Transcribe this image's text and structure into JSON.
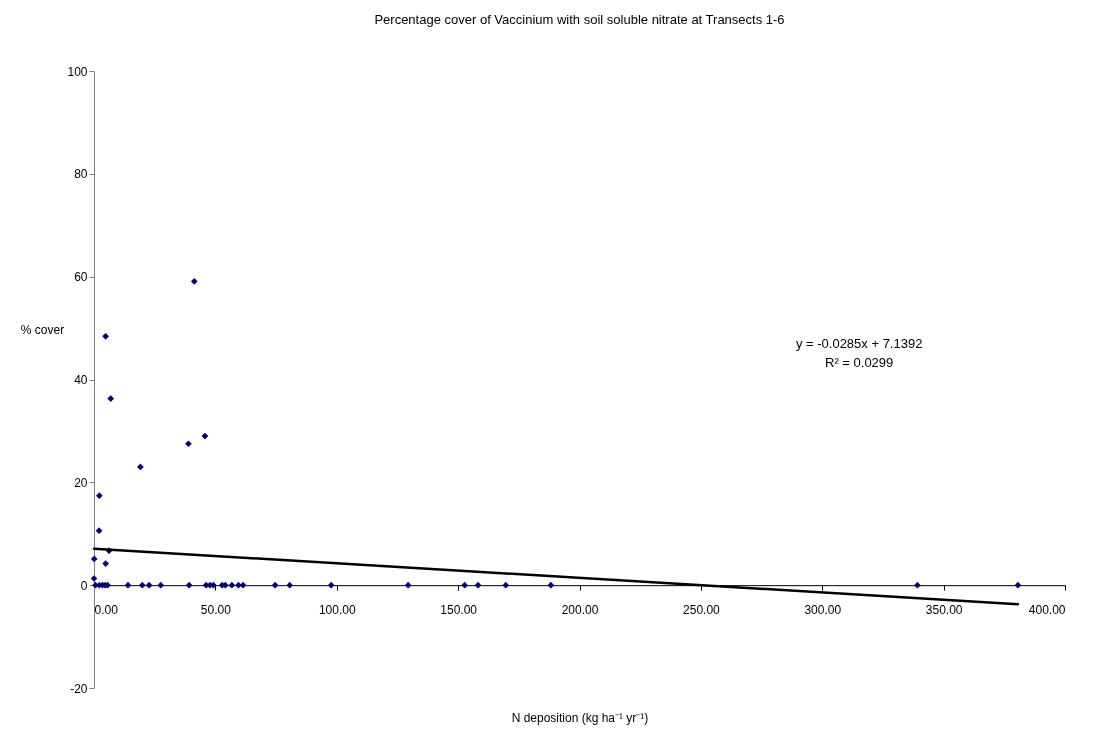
{
  "chart_data": {
    "type": "scatter",
    "title": "Percentage cover of Vaccinium with soil soluble nitrate at Transects 1-6",
    "xlabel": "N deposition (kg ha⁻¹ yr⁻¹)",
    "ylabel": "% cover",
    "xlim": [
      0,
      400
    ],
    "xticks": [
      {
        "value": 0,
        "label": "0.00"
      },
      {
        "value": 50,
        "label": "50.00"
      },
      {
        "value": 100,
        "label": "100.00"
      },
      {
        "value": 150,
        "label": "150.00"
      },
      {
        "value": 200,
        "label": "200.00"
      },
      {
        "value": 250,
        "label": "250.00"
      },
      {
        "value": 300,
        "label": "300.00"
      },
      {
        "value": 350,
        "label": "350.00"
      },
      {
        "value": 400,
        "label": "400.00"
      }
    ],
    "ylim": [
      -20,
      100
    ],
    "yticks": [
      -20,
      0,
      20,
      40,
      60,
      80,
      100
    ],
    "grid": false,
    "marker": "diamond",
    "annotations": [
      "y = -0.0285x + 7.1392",
      "R² = 0.0299"
    ],
    "series": [
      {
        "color": "#000080",
        "x": [
          41.3,
          4.8,
          6.9,
          45.7,
          38.9,
          19.1,
          2.2,
          2.1,
          6.2,
          0.1,
          4.8,
          0.0,
          0.6,
          2.2,
          3.5,
          4.6,
          5.6,
          14.0,
          19.9,
          22.7,
          27.5,
          39.2,
          46.2,
          47.8,
          49.2,
          52.8,
          54.1,
          56.8,
          59.5,
          61.4,
          74.6,
          80.6,
          97.7,
          129.4,
          152.7,
          158.2,
          169.6,
          188.2,
          339.2,
          380.6
        ],
        "values": [
          59.1,
          48.4,
          36.3,
          29.0,
          27.5,
          23.0,
          17.4,
          10.6,
          6.7,
          5.1,
          4.2,
          1.3,
          0,
          0,
          0,
          0,
          0,
          0,
          0,
          0,
          0,
          0,
          0,
          0,
          0,
          0,
          0,
          0,
          0,
          0,
          0,
          0,
          0,
          0,
          0,
          0,
          0,
          0,
          0,
          0
        ]
      },
      {
        "type": "line",
        "color": "#000000",
        "marker": "none",
        "line_style": "solid",
        "x": [
          0,
          380.6
        ],
        "values": [
          7.1,
          -3.7
        ]
      }
    ]
  }
}
